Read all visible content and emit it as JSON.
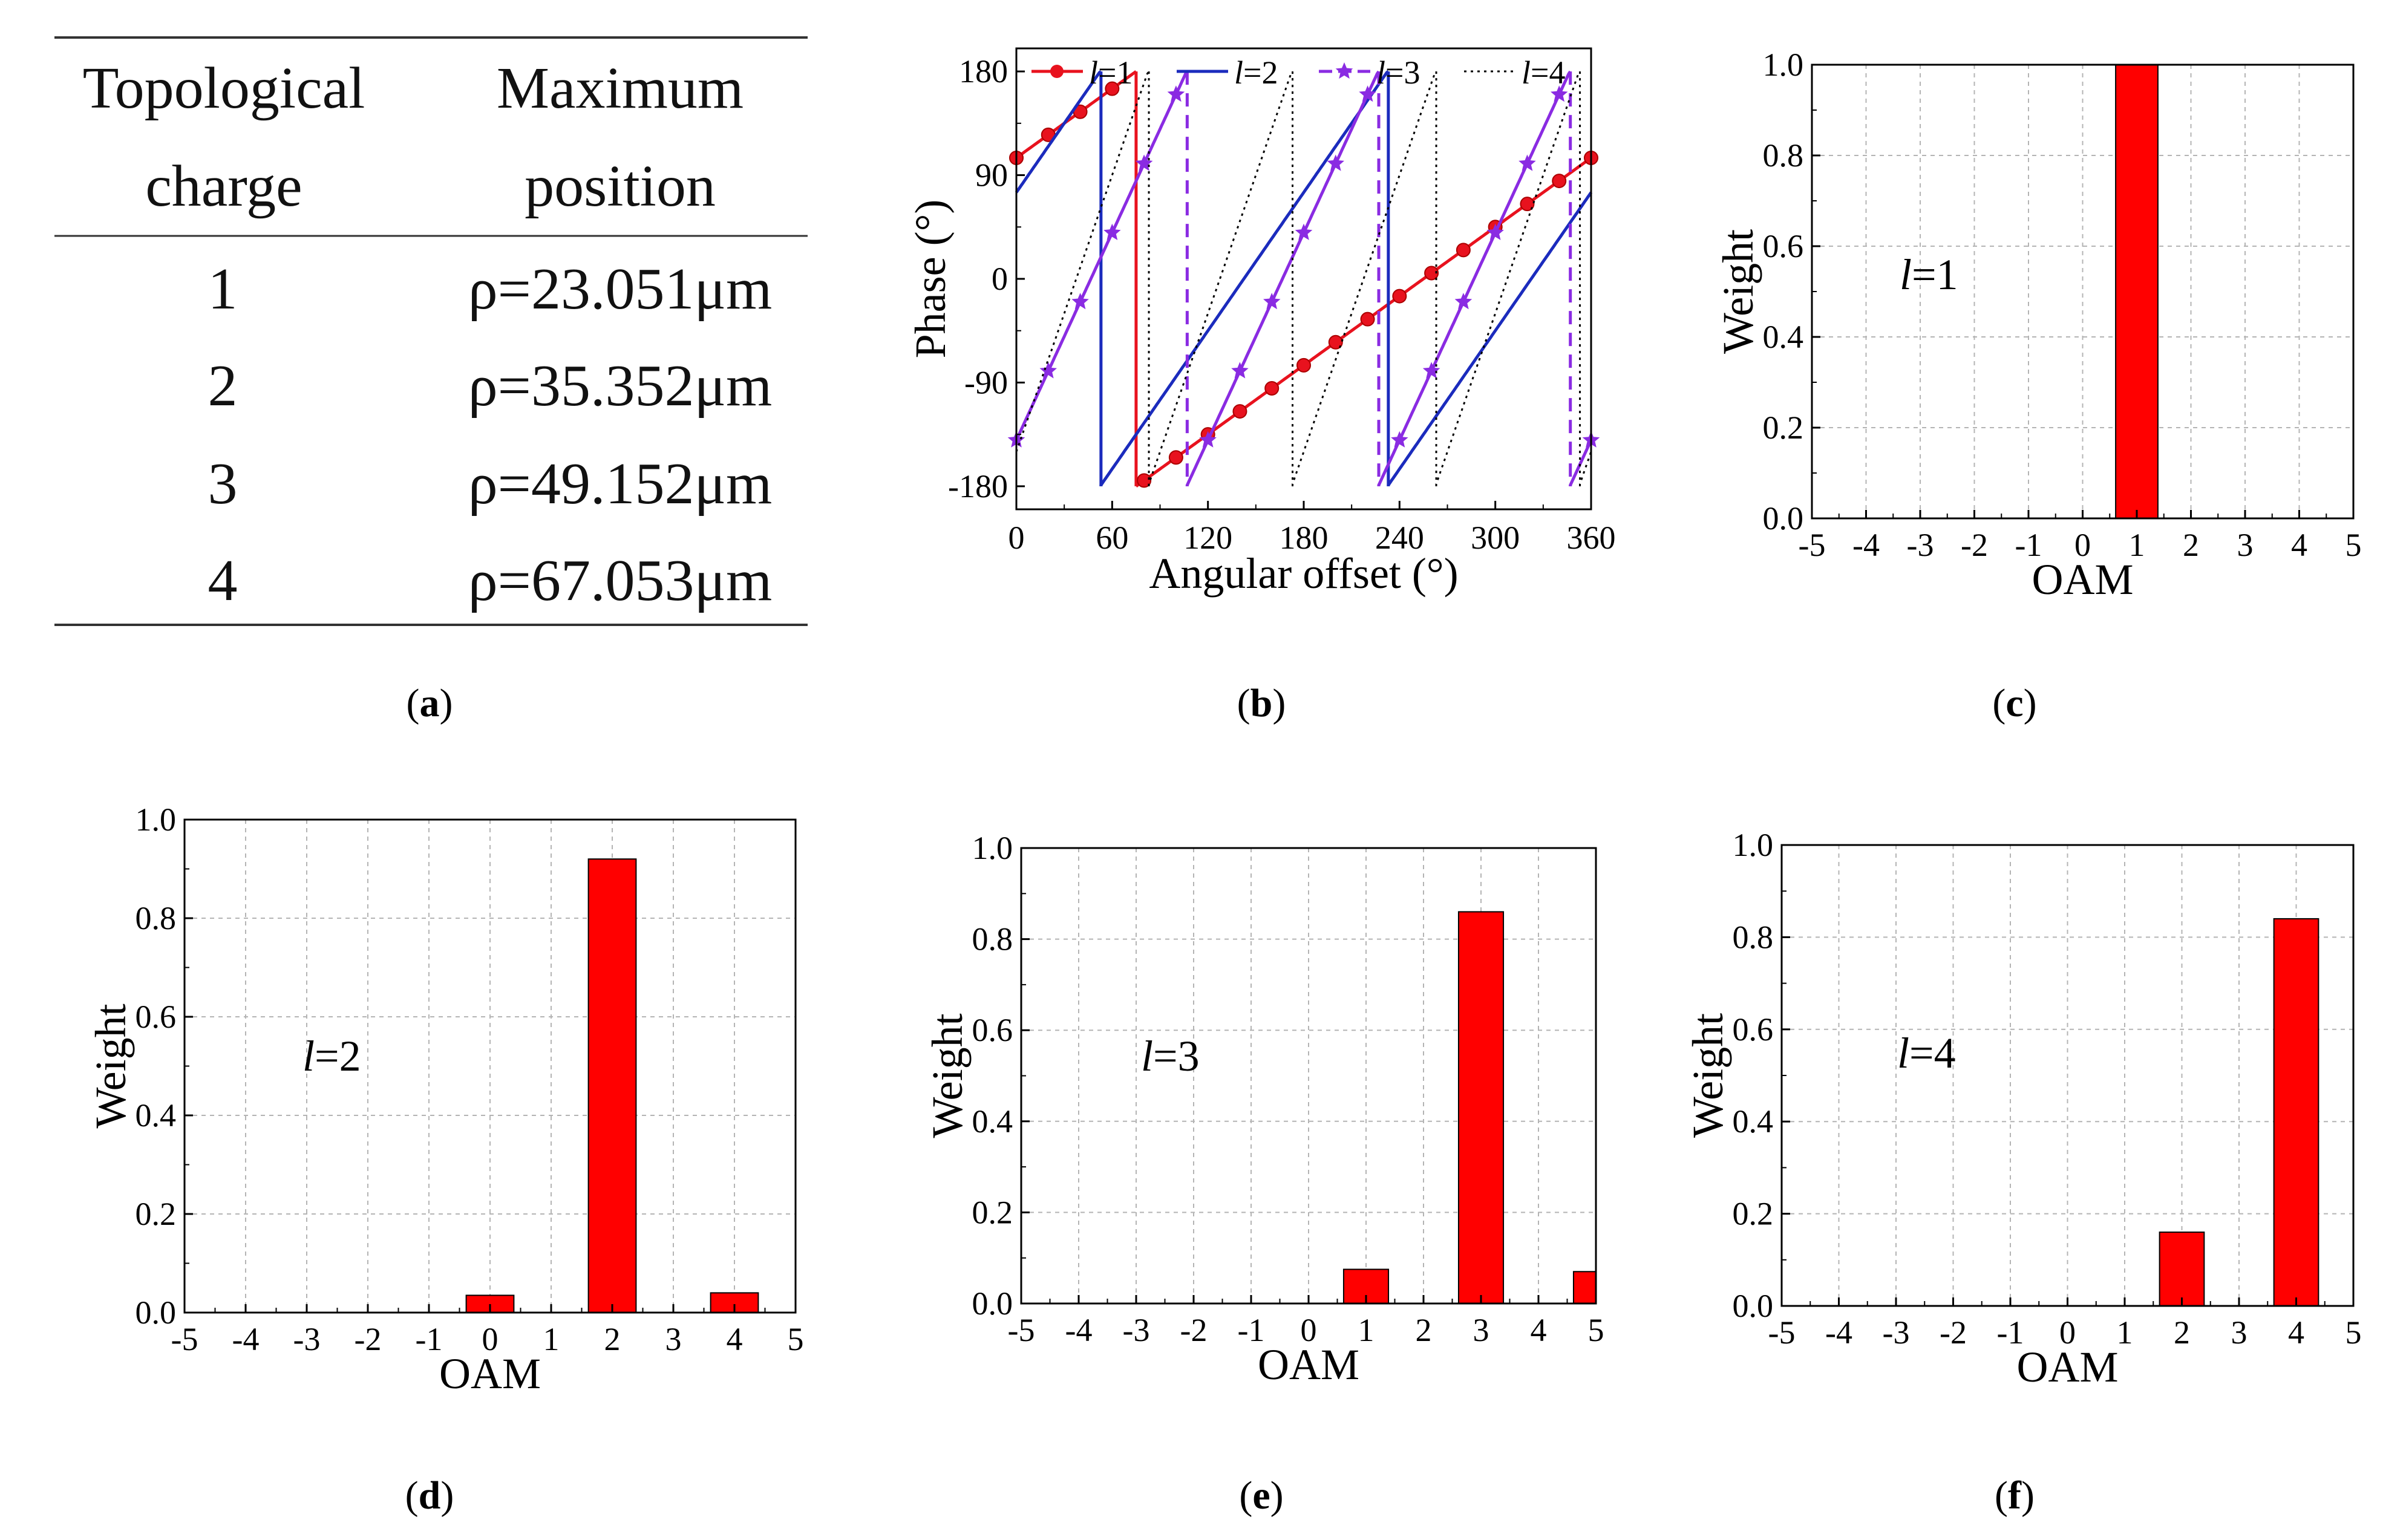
{
  "captions": [
    "(a)",
    "(b)",
    "(c)",
    "(d)",
    "(e)",
    "(f)"
  ],
  "table": {
    "headers": [
      [
        "Topological",
        "charge"
      ],
      [
        "Maximum",
        "position"
      ]
    ],
    "rows": [
      [
        "1",
        "ρ=23.051μm"
      ],
      [
        "2",
        "ρ=35.352μm"
      ],
      [
        "3",
        "ρ=49.152μm"
      ],
      [
        "4",
        "ρ=67.053μm"
      ]
    ]
  },
  "colors": {
    "red": "#ff0000",
    "red_line": "#e8121e",
    "blue": "#1b2bbd",
    "purple": "#8a2be2",
    "black": "#000000",
    "grid": "#b4b4b4"
  },
  "chart_data": [
    {
      "id": "b",
      "type": "line",
      "xlabel": "Angular offset (°)",
      "ylabel": "Phase (°)",
      "xlim": [
        0,
        360
      ],
      "ylim": [
        -200,
        200
      ],
      "xticks": [
        "0",
        "60",
        "120",
        "180",
        "240",
        "300",
        "360"
      ],
      "yticks": [
        "-180",
        "-90",
        "0",
        "90",
        "180"
      ],
      "series": [
        {
          "name": "l=1",
          "l": 1,
          "phase0": 105,
          "color": "#e8121e",
          "style": "solid",
          "marker": "circle"
        },
        {
          "name": "l=2",
          "l": 2,
          "phase0": 75,
          "color": "#1b2bbd",
          "style": "solid",
          "marker": "none"
        },
        {
          "name": "l=3",
          "l": 3,
          "phase0": -140,
          "color": "#8a2be2",
          "style": "dash-jumps",
          "marker": "star"
        },
        {
          "name": "l=4",
          "l": 4,
          "phase0": -150,
          "color": "#000000",
          "style": "dotted",
          "marker": "none"
        }
      ]
    },
    {
      "id": "c",
      "type": "bar",
      "annotation": "1",
      "xlabel": "OAM",
      "ylabel": "Weight",
      "x": [
        -5,
        -4,
        -3,
        -2,
        -1,
        0,
        1,
        2,
        3,
        4,
        5
      ],
      "values": [
        0,
        0,
        0,
        0,
        0,
        0,
        1.0,
        0,
        0,
        0,
        0
      ],
      "xlim": [
        -5,
        5
      ],
      "ylim": [
        0,
        1.0
      ],
      "xticks": [
        "-5",
        "-4",
        "-3",
        "-2",
        "-1",
        "0",
        "1",
        "2",
        "3",
        "4",
        "5"
      ],
      "yticks": [
        "0.0",
        "0.2",
        "0.4",
        "0.6",
        "0.8",
        "1.0"
      ]
    },
    {
      "id": "d",
      "type": "bar",
      "annotation": "2",
      "xlabel": "OAM",
      "ylabel": "Weight",
      "x": [
        -5,
        -4,
        -3,
        -2,
        -1,
        0,
        1,
        2,
        3,
        4,
        5
      ],
      "values": [
        0,
        0,
        0,
        0,
        0,
        0.035,
        0,
        0.92,
        0,
        0.04,
        0
      ],
      "xlim": [
        -5,
        5
      ],
      "ylim": [
        0,
        1.0
      ],
      "xticks": [
        "-5",
        "-4",
        "-3",
        "-2",
        "-1",
        "0",
        "1",
        "2",
        "3",
        "4",
        "5"
      ],
      "yticks": [
        "0.0",
        "0.2",
        "0.4",
        "0.6",
        "0.8",
        "1.0"
      ]
    },
    {
      "id": "e",
      "type": "bar",
      "annotation": "3",
      "xlabel": "OAM",
      "ylabel": "Weight",
      "x": [
        -5,
        -4,
        -3,
        -2,
        -1,
        0,
        1,
        2,
        3,
        4,
        5
      ],
      "values": [
        0,
        0,
        0,
        0,
        0,
        0,
        0.075,
        0,
        0.86,
        0,
        0.07
      ],
      "xlim": [
        -5,
        5
      ],
      "ylim": [
        0,
        1.0
      ],
      "xticks": [
        "-5",
        "-4",
        "-3",
        "-2",
        "-1",
        "0",
        "1",
        "2",
        "3",
        "4",
        "5"
      ],
      "yticks": [
        "0.0",
        "0.2",
        "0.4",
        "0.6",
        "0.8",
        "1.0"
      ]
    },
    {
      "id": "f",
      "type": "bar",
      "annotation": "4",
      "xlabel": "OAM",
      "ylabel": "Weight",
      "x": [
        -5,
        -4,
        -3,
        -2,
        -1,
        0,
        1,
        2,
        3,
        4,
        5
      ],
      "values": [
        0,
        0,
        0,
        0,
        0,
        0,
        0,
        0.16,
        0,
        0.84,
        0
      ],
      "xlim": [
        -5,
        5
      ],
      "ylim": [
        0,
        1.0
      ],
      "xticks": [
        "-5",
        "-4",
        "-3",
        "-2",
        "-1",
        "0",
        "1",
        "2",
        "3",
        "4",
        "5"
      ],
      "yticks": [
        "0.0",
        "0.2",
        "0.4",
        "0.6",
        "0.8",
        "1.0"
      ]
    }
  ]
}
